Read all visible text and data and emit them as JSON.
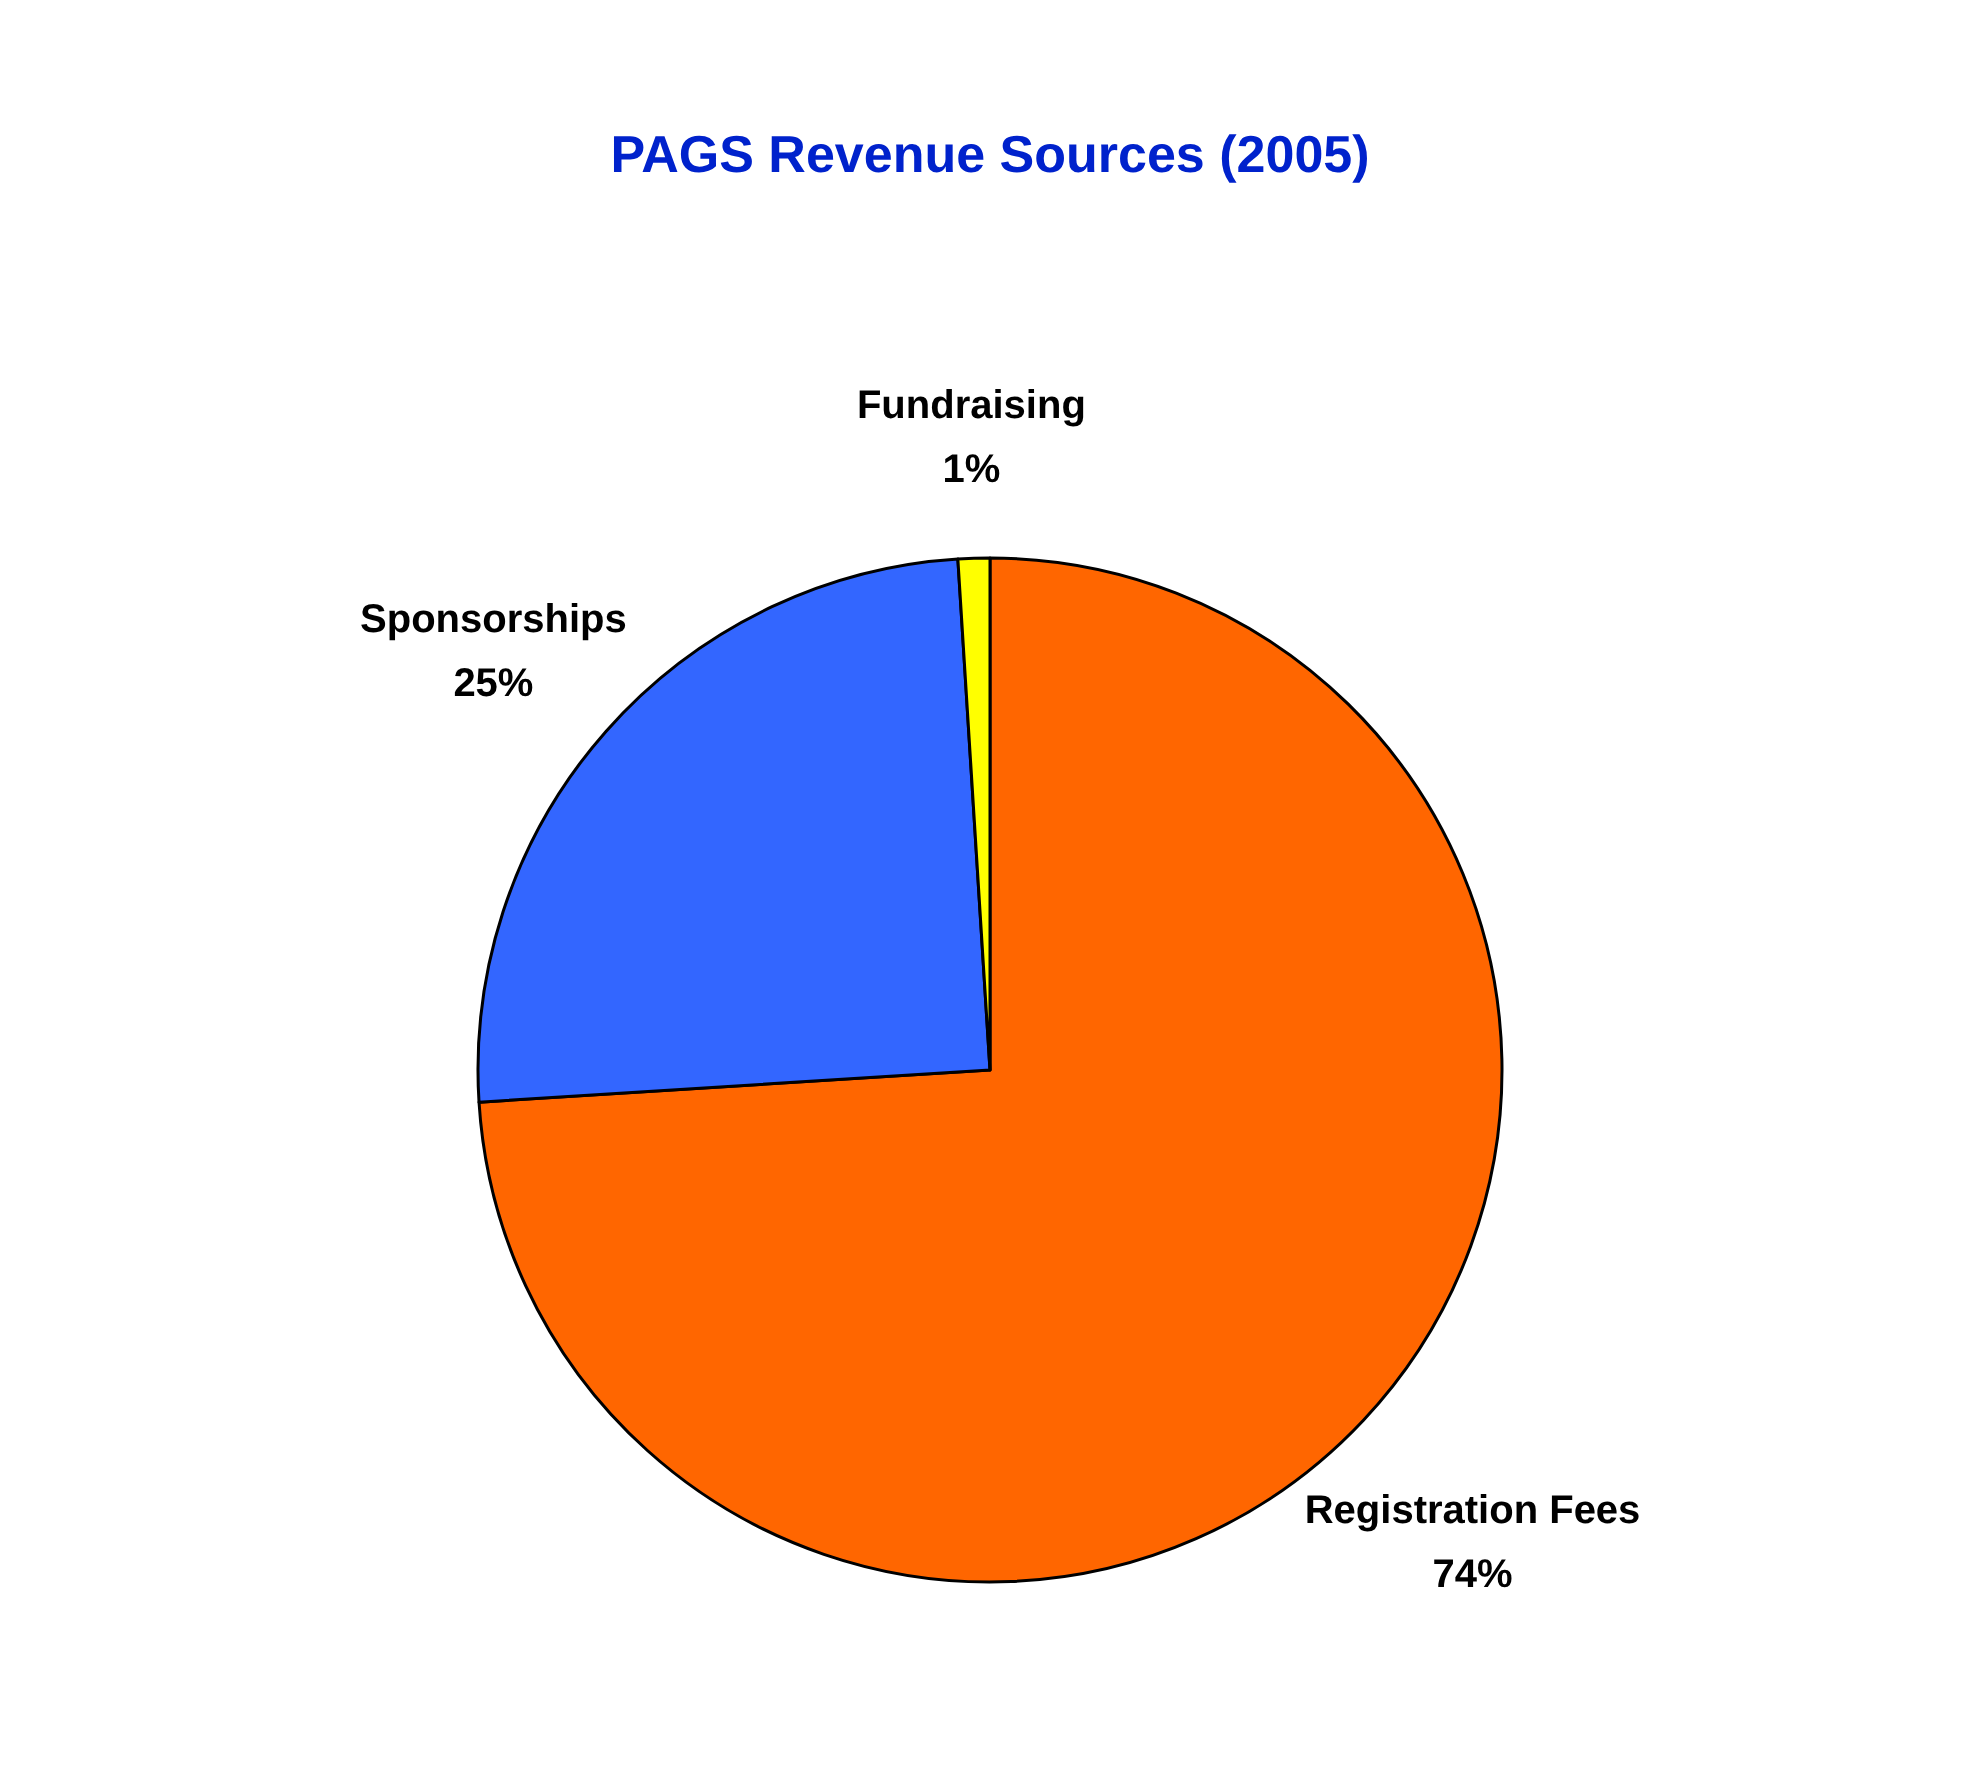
{
  "chart_data": {
    "type": "pie",
    "title": "PAGS Revenue Sources (2005)",
    "categories": [
      "Registration Fees",
      "Sponsorships",
      "Fundraising"
    ],
    "values": [
      74,
      25,
      1
    ],
    "colors": [
      "#ff6600",
      "#3366ff",
      "#ffff00"
    ],
    "value_labels": [
      "74%",
      "25%",
      "1%"
    ]
  }
}
